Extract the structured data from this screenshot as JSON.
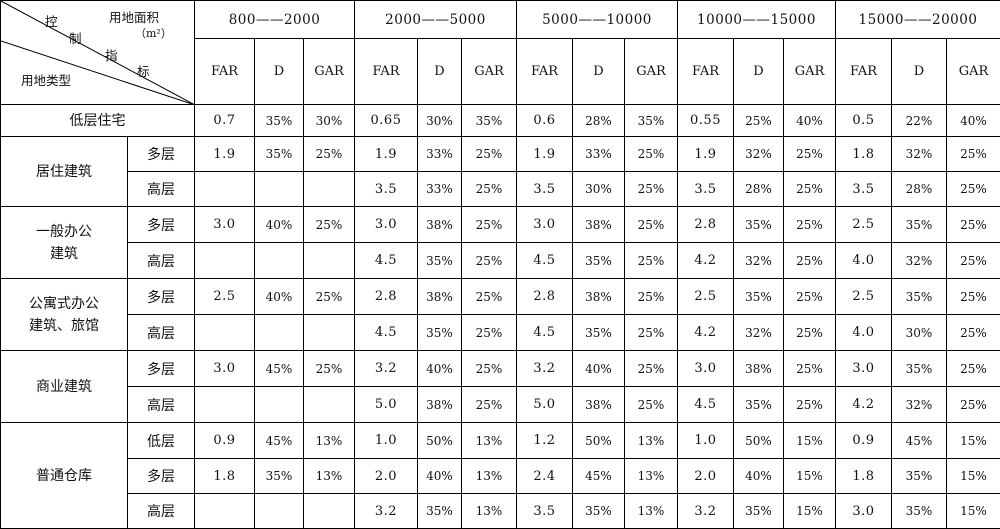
{
  "header": {
    "corner": {
      "label_kong": "控",
      "label_zhi": "制",
      "label_zhi2": "指",
      "label_biao": "标",
      "label_area": "用地面积",
      "label_unit": "（m²）",
      "label_landtype": "用地类型"
    },
    "groups": [
      "800——2000",
      "2000——5000",
      "5000——10000",
      "10000——15000",
      "15000——20000"
    ],
    "metrics": [
      "FAR",
      "D",
      "GAR"
    ]
  },
  "rows": [
    {
      "type": "低层住宅",
      "sub": "",
      "values": [
        "0.7",
        "35%",
        "30%",
        "0.65",
        "30%",
        "35%",
        "0.6",
        "28%",
        "35%",
        "0.55",
        "25%",
        "40%",
        "0.5",
        "22%",
        "40%"
      ]
    },
    {
      "type": "居住建筑",
      "sub": "多层",
      "values": [
        "1.9",
        "35%",
        "25%",
        "1.9",
        "33%",
        "25%",
        "1.9",
        "33%",
        "25%",
        "1.9",
        "32%",
        "25%",
        "1.8",
        "32%",
        "25%"
      ]
    },
    {
      "type": "",
      "sub": "高层",
      "values": [
        "",
        "",
        "",
        "3.5",
        "33%",
        "25%",
        "3.5",
        "30%",
        "25%",
        "3.5",
        "28%",
        "25%",
        "3.5",
        "28%",
        "25%"
      ]
    },
    {
      "type": "一般办公|建筑",
      "sub": "多层",
      "values": [
        "3.0",
        "40%",
        "25%",
        "3.0",
        "38%",
        "25%",
        "3.0",
        "38%",
        "25%",
        "2.8",
        "35%",
        "25%",
        "2.5",
        "35%",
        "25%"
      ]
    },
    {
      "type": "",
      "sub": "高层",
      "values": [
        "",
        "",
        "",
        "4.5",
        "35%",
        "25%",
        "4.5",
        "35%",
        "25%",
        "4.2",
        "32%",
        "25%",
        "4.0",
        "32%",
        "25%"
      ]
    },
    {
      "type": "公寓式办公|建筑、旅馆",
      "sub": "多层",
      "values": [
        "2.5",
        "40%",
        "25%",
        "2.8",
        "38%",
        "25%",
        "2.8",
        "38%",
        "25%",
        "2.5",
        "35%",
        "25%",
        "2.5",
        "35%",
        "25%"
      ]
    },
    {
      "type": "",
      "sub": "高层",
      "values": [
        "",
        "",
        "",
        "4.5",
        "35%",
        "25%",
        "4.5",
        "35%",
        "25%",
        "4.2",
        "32%",
        "25%",
        "4.0",
        "30%",
        "25%"
      ]
    },
    {
      "type": "商业建筑",
      "sub": "多层",
      "values": [
        "3.0",
        "45%",
        "25%",
        "3.2",
        "40%",
        "25%",
        "3.2",
        "40%",
        "25%",
        "3.0",
        "38%",
        "25%",
        "3.0",
        "35%",
        "25%"
      ]
    },
    {
      "type": "",
      "sub": "高层",
      "values": [
        "",
        "",
        "",
        "5.0",
        "38%",
        "25%",
        "5.0",
        "38%",
        "25%",
        "4.5",
        "35%",
        "25%",
        "4.2",
        "32%",
        "25%"
      ]
    },
    {
      "type": "普通仓库",
      "sub": "低层",
      "values": [
        "0.9",
        "45%",
        "13%",
        "1.0",
        "50%",
        "13%",
        "1.2",
        "50%",
        "13%",
        "1.0",
        "50%",
        "15%",
        "0.9",
        "45%",
        "15%"
      ]
    },
    {
      "type": "",
      "sub": "多层",
      "values": [
        "1.8",
        "35%",
        "13%",
        "2.0",
        "40%",
        "13%",
        "2.4",
        "45%",
        "13%",
        "2.0",
        "40%",
        "15%",
        "1.8",
        "35%",
        "15%"
      ]
    },
    {
      "type": "",
      "sub": "高层",
      "values": [
        "",
        "",
        "",
        "3.2",
        "35%",
        "13%",
        "3.5",
        "35%",
        "13%",
        "3.2",
        "35%",
        "15%",
        "3.0",
        "35%",
        "15%"
      ]
    }
  ]
}
